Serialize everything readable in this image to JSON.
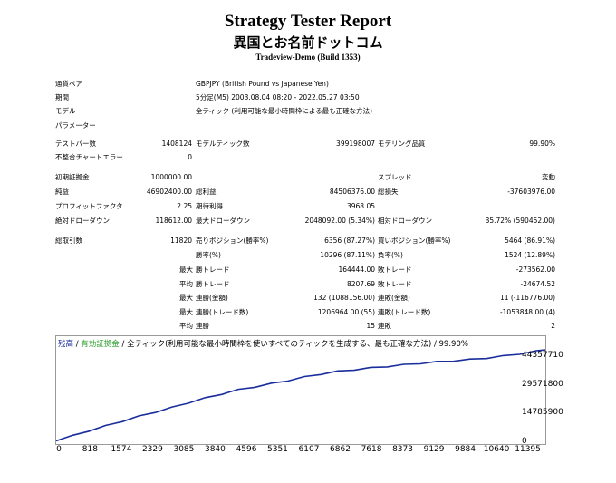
{
  "header": {
    "title": "Strategy Tester Report",
    "subtitle": "異国とお名前ドットコム",
    "server": "Tradeview-Demo (Build 1353)"
  },
  "info": {
    "symbol_label": "通貨ペア",
    "symbol_value": "GBPJPY (British Pound vs Japanese Yen)",
    "period_label": "期間",
    "period_value": "5分足(M5) 2003.08.04 08:20 - 2022.05.27 03:50",
    "model_label": "モデル",
    "model_value": "全ティック (利用可能な最小時間枠による最も正確な方法)",
    "params_label": "パラメーター"
  },
  "stats": {
    "bars_label": "テストバー数",
    "bars_value": "1408124",
    "ticks_label": "モデルティック数",
    "ticks_value": "399198007",
    "quality_label": "モデリング品質",
    "quality_value": "99.90%",
    "mismatch_label": "不整合チャートエラー",
    "mismatch_value": "0",
    "deposit_label": "初期証拠金",
    "deposit_value": "1000000.00",
    "spread_label": "スプレッド",
    "spread_value": "変動",
    "net_label": "純益",
    "net_value": "46902400.00",
    "gross_profit_label": "総利益",
    "gross_profit_value": "84506376.00",
    "gross_loss_label": "総損失",
    "gross_loss_value": "-37603976.00",
    "pf_label": "プロフィットファクタ",
    "pf_value": "2.25",
    "payoff_label": "期待利得",
    "payoff_value": "3968.05",
    "abs_dd_label": "絶対ドローダウン",
    "abs_dd_value": "118612.00",
    "max_dd_label": "最大ドローダウン",
    "max_dd_value": "2048092.00 (5.34%)",
    "rel_dd_label": "相対ドローダウン",
    "rel_dd_value": "35.72% (590452.00)",
    "total_label": "総取引数",
    "total_value": "11820",
    "short_label": "売りポジション(勝率%)",
    "short_value": "6356 (87.27%)",
    "long_label": "買いポジション(勝率%)",
    "long_value": "5464 (86.91%)",
    "win_label": "勝率(%)",
    "win_value": "10296 (87.11%)",
    "loss_label": "負率(%)",
    "loss_value": "1524 (12.89%)",
    "max_win_label": "勝トレード",
    "max_win_value": "164444.00",
    "max_loss_label": "敗トレード",
    "max_loss_value": "-273562.00",
    "avg_win_label": "勝トレード",
    "avg_win_value": "8207.69",
    "avg_loss_label": "敗トレード",
    "avg_loss_value": "-24674.52",
    "cw_amt_label": "連勝(金額)",
    "cw_amt_value": "132 (1088156.00)",
    "cl_amt_label": "連敗(金額)",
    "cl_amt_value": "11 (-116776.00)",
    "cw_cnt_label": "連勝(トレード数)",
    "cw_cnt_value": "1206964.00 (55)",
    "cl_cnt_label": "連敗(トレード数)",
    "cl_cnt_value": "-1053848.00 (4)",
    "avg_cw_label": "連勝",
    "avg_cw_value": "15",
    "avg_cl_label": "連敗",
    "avg_cl_value": "2",
    "max_word": "最大",
    "avg_word": "平均"
  },
  "chart": {
    "legend_balance": "残高",
    "legend_sep1": " / ",
    "legend_equity": "有効証拠金",
    "legend_rest": " / 全ティック(利用可能な最小時間枠を使いすべてのティックを生成する、最も正確な方法) / 99.90%",
    "balance_color": "#1a2d9c",
    "equity_color": "#2e9c2e"
  },
  "chart_data": {
    "type": "line",
    "x_ticks": [
      "0",
      "818",
      "1574",
      "2329",
      "3085",
      "3840",
      "4596",
      "5351",
      "6107",
      "6862",
      "7618",
      "8373",
      "9129",
      "9884",
      "10640",
      "11395"
    ],
    "y_ticks": [
      "44357710",
      "29571800",
      "14785900",
      "0"
    ],
    "xlim": [
      0,
      11820
    ],
    "ylim": [
      0,
      50000000
    ],
    "series": [
      {
        "x": [
          0,
          400,
          800,
          1200,
          1600,
          2000,
          2400,
          2800,
          3200,
          3600,
          4000,
          4400,
          4800,
          5200,
          5600,
          6000,
          6400,
          6800,
          7200,
          7600,
          8000,
          8400,
          8800,
          9200,
          9600,
          10000,
          10400,
          10800,
          11200,
          11600,
          11820
        ],
        "values": [
          1000000,
          3300000,
          6000000,
          8400000,
          10900000,
          13300000,
          15600000,
          17900000,
          20400000,
          22700000,
          24900000,
          27000000,
          28600000,
          30200000,
          31800000,
          33600000,
          35200000,
          36500000,
          37400000,
          38300000,
          39100000,
          39900000,
          40700000,
          41400000,
          42000000,
          42600000,
          43400000,
          44400000,
          45600000,
          46900000,
          47902400
        ]
      }
    ]
  }
}
